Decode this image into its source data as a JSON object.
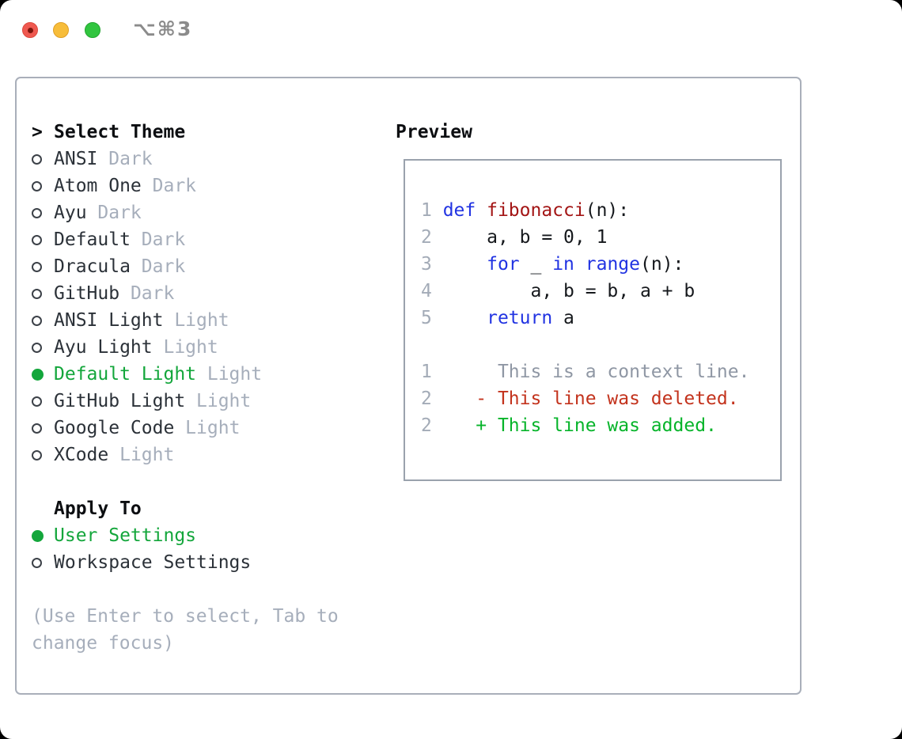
{
  "window": {
    "shortcut_label": "⌥⌘3"
  },
  "select_theme": {
    "prompt": ">",
    "title": "Select Theme",
    "items": [
      {
        "name": "ANSI",
        "variant": "Dark",
        "selected": false
      },
      {
        "name": "Atom One",
        "variant": "Dark",
        "selected": false
      },
      {
        "name": "Ayu",
        "variant": "Dark",
        "selected": false
      },
      {
        "name": "Default",
        "variant": "Dark",
        "selected": false
      },
      {
        "name": "Dracula",
        "variant": "Dark",
        "selected": false
      },
      {
        "name": "GitHub",
        "variant": "Dark",
        "selected": false
      },
      {
        "name": "ANSI Light",
        "variant": "Light",
        "selected": false
      },
      {
        "name": "Ayu Light",
        "variant": "Light",
        "selected": false
      },
      {
        "name": "Default Light",
        "variant": "Light",
        "selected": true
      },
      {
        "name": "GitHub Light",
        "variant": "Light",
        "selected": false
      },
      {
        "name": "Google Code",
        "variant": "Light",
        "selected": false
      },
      {
        "name": "XCode",
        "variant": "Light",
        "selected": false
      }
    ]
  },
  "apply_to": {
    "title": "Apply To",
    "options": [
      {
        "name": "User Settings",
        "selected": true
      },
      {
        "name": "Workspace Settings",
        "selected": false
      }
    ]
  },
  "hint": {
    "lines": [
      "(Use Enter to select, Tab to",
      "change focus)"
    ]
  },
  "preview": {
    "title": "Preview",
    "lines": [
      [
        {
          "c": "ln",
          "t": "1 "
        },
        {
          "c": "kw",
          "t": "def "
        },
        {
          "c": "fn",
          "t": "fibonacci"
        },
        {
          "c": "pl",
          "t": "(n):"
        }
      ],
      [
        {
          "c": "ln",
          "t": "2 "
        },
        {
          "c": "pl",
          "t": "    a, b = 0, 1"
        }
      ],
      [
        {
          "c": "ln",
          "t": "3 "
        },
        {
          "c": "pl",
          "t": "    "
        },
        {
          "c": "kw",
          "t": "for"
        },
        {
          "c": "pl",
          "t": " _ "
        },
        {
          "c": "kw",
          "t": "in"
        },
        {
          "c": "pl",
          "t": " "
        },
        {
          "c": "kw",
          "t": "range"
        },
        {
          "c": "pl",
          "t": "(n):"
        }
      ],
      [
        {
          "c": "ln",
          "t": "4 "
        },
        {
          "c": "pl",
          "t": "        a, b = b, a + b"
        }
      ],
      [
        {
          "c": "ln",
          "t": "5 "
        },
        {
          "c": "pl",
          "t": "    "
        },
        {
          "c": "kw",
          "t": "return"
        },
        {
          "c": "pl",
          "t": " a"
        }
      ],
      [],
      [
        {
          "c": "ln",
          "t": "1"
        },
        {
          "c": "ctx",
          "t": "      This is a context line."
        }
      ],
      [
        {
          "c": "ln",
          "t": "2"
        },
        {
          "c": "del",
          "t": "    - This line was deleted."
        }
      ],
      [
        {
          "c": "ln",
          "t": "2"
        },
        {
          "c": "add",
          "t": "    + This line was added."
        }
      ]
    ]
  },
  "colors": {
    "traffic_red": "#ef5950",
    "traffic_yellow": "#f7bd3a",
    "traffic_green": "#31c53f",
    "selection_green": "#13a63b",
    "keyword_blue": "#2133e2",
    "function_red": "#a31515",
    "diff_deleted_red": "#c3331d",
    "diff_added_green": "#06b42a",
    "muted_gray": "#a6aebb",
    "panel_border": "#a9afba"
  }
}
